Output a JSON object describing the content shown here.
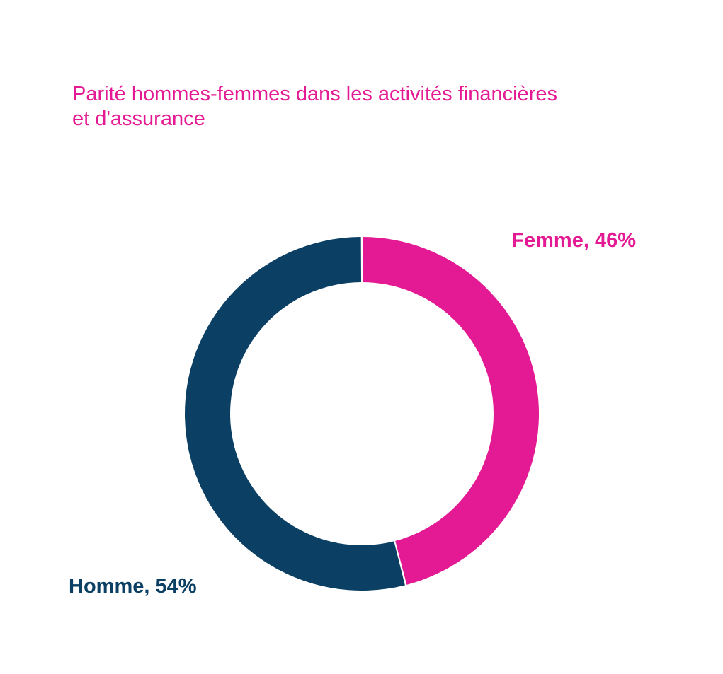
{
  "chart_data": {
    "type": "pie",
    "variant": "donut",
    "title_lines": [
      "Parité hommes-femmes dans les activités financières",
      "et d'assurance"
    ],
    "slices": [
      {
        "label": "Femme, 46%",
        "category": "Femme",
        "value": 46,
        "color": "#e31a93"
      },
      {
        "label": "Homme, 54%",
        "category": "Homme",
        "value": 54,
        "color": "#0b4064"
      }
    ],
    "start": "12 o'clock",
    "direction": "clockwise",
    "legend": "none"
  },
  "colors": {
    "title": "#e31a93",
    "background": "#ffffff"
  }
}
